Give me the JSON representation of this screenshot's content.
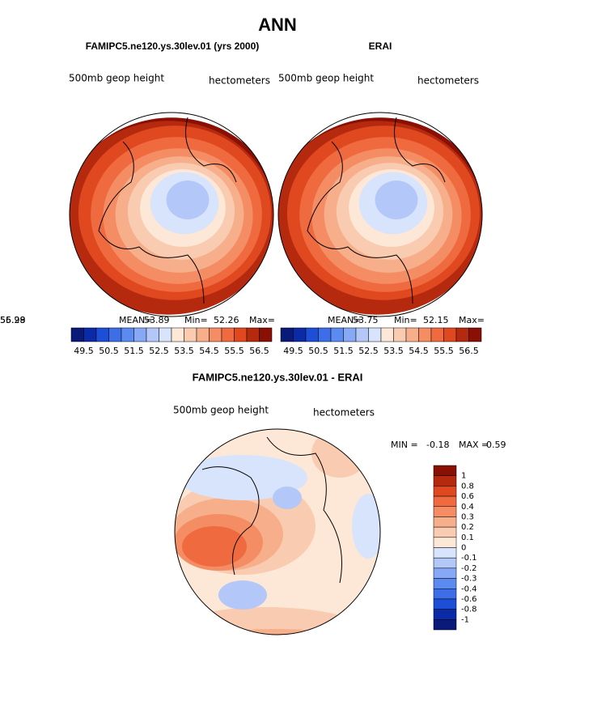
{
  "title": "ANN",
  "panels": [
    {
      "title": "FAMIPC5.ne120.ys.30lev.01 (yrs 2000)",
      "variable": "500mb geop height",
      "units": "hectometers",
      "stats": [
        {
          "label": "MEAN=",
          "value": 53.89
        },
        {
          "label": "Min=",
          "value": 52.26
        },
        {
          "label": "Max=",
          "value": 56.28
        }
      ]
    },
    {
      "title": "ERAI",
      "variable": "500mb geop height",
      "units": "hectometers",
      "stats": [
        {
          "label": "MEAN=",
          "value": 53.75
        },
        {
          "label": "Min=",
          "value": 52.15
        },
        {
          "label": "Max=",
          "value": 55.99
        }
      ]
    }
  ],
  "colorbar": {
    "labels": [
      49.5,
      50.5,
      51.5,
      52.5,
      53.5,
      54.5,
      55.5,
      56.5
    ],
    "colors": [
      "#0a1a78",
      "#0a2aa8",
      "#1d4fd6",
      "#3d6ee8",
      "#5b8af0",
      "#86a8f5",
      "#b3c8f8",
      "#d8e4fb",
      "#fde8d8",
      "#f9cbb0",
      "#f7ae8a",
      "#f48d64",
      "#f06a3f",
      "#e0481f",
      "#b52a0f",
      "#8a0f05"
    ]
  },
  "difference": {
    "title": "FAMIPC5.ne120.ys.30lev.01 - ERAI",
    "variable": "500mb geop height",
    "units": "hectometers",
    "stats": [
      {
        "label": "MIN =",
        "value": -0.18
      },
      {
        "label": "MAX =",
        "value": 0.59
      }
    ],
    "colorbar": {
      "labels": [
        1,
        0.8,
        0.6,
        0.4,
        0.3,
        0.2,
        0.1,
        0,
        -0.1,
        -0.2,
        -0.3,
        -0.4,
        -0.6,
        -0.8,
        -1
      ],
      "colors": [
        "#8a0f05",
        "#b52a0f",
        "#e0481f",
        "#f06a3f",
        "#f48d64",
        "#f7ae8a",
        "#f9cbb0",
        "#fde8d8",
        "#d8e4fb",
        "#b3c8f8",
        "#86a8f5",
        "#5b8af0",
        "#3d6ee8",
        "#1d4fd6",
        "#0a2aa8",
        "#0a1a78"
      ]
    }
  }
}
